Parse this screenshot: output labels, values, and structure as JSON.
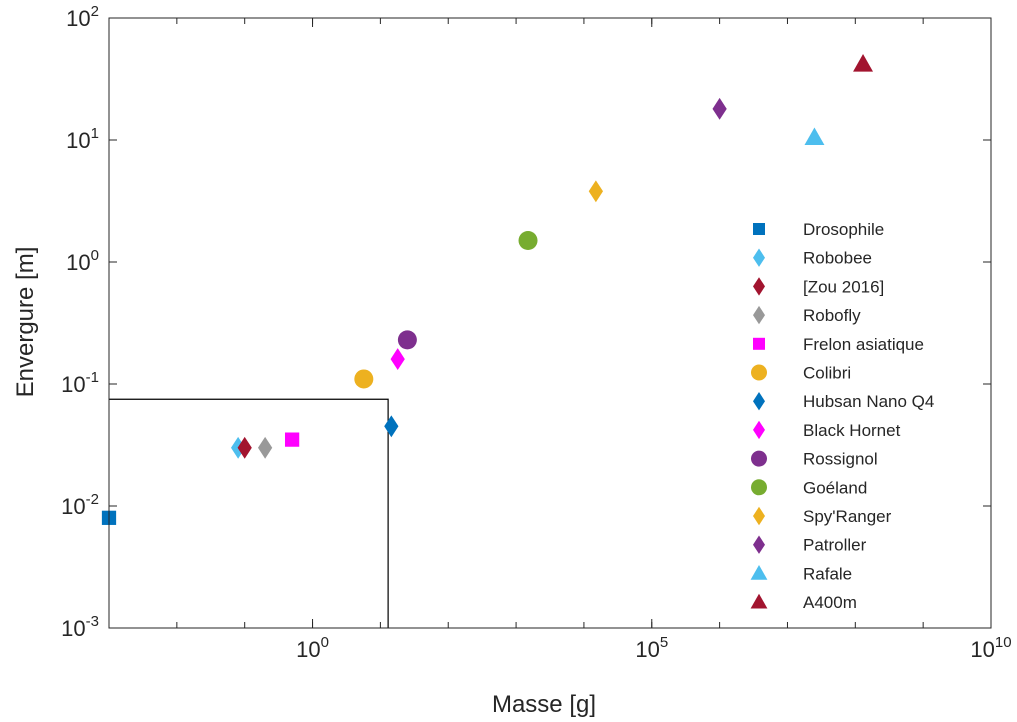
{
  "chart_data": {
    "type": "scatter",
    "xscale": "log",
    "yscale": "log",
    "xlim": [
      0.001,
      10000000000
    ],
    "ylim": [
      0.001,
      100
    ],
    "xlabel": "Masse [g]",
    "ylabel": "Envergure [m]",
    "x_ticks": [
      {
        "base": "10",
        "exp": "0",
        "value": 1
      },
      {
        "base": "10",
        "exp": "5",
        "value": 100000
      },
      {
        "base": "10",
        "exp": "10",
        "value": 10000000000
      }
    ],
    "y_ticks": [
      {
        "base": "10",
        "exp": "-3",
        "value": 0.001
      },
      {
        "base": "10",
        "exp": "-2",
        "value": 0.01
      },
      {
        "base": "10",
        "exp": "-1",
        "value": 0.1
      },
      {
        "base": "10",
        "exp": "0",
        "value": 1
      },
      {
        "base": "10",
        "exp": "1",
        "value": 10
      },
      {
        "base": "10",
        "exp": "2",
        "value": 100
      }
    ],
    "region_box": {
      "x": 13,
      "y": 0.075
    },
    "legend_position": "right",
    "series": [
      {
        "name": "Drosophile",
        "marker": "square",
        "color": "#0072BD",
        "x": 0.001,
        "y": 0.008
      },
      {
        "name": "Robobee",
        "marker": "diamond",
        "color": "#4DBEEE",
        "x": 0.08,
        "y": 0.03
      },
      {
        "name": "[Zou 2016]",
        "marker": "diamond",
        "color": "#A2142F",
        "x": 0.1,
        "y": 0.03
      },
      {
        "name": "Robofly",
        "marker": "diamond",
        "color": "#999999",
        "x": 0.2,
        "y": 0.03
      },
      {
        "name": "Frelon asiatique",
        "marker": "square",
        "color": "#FF00FF",
        "x": 0.5,
        "y": 0.035
      },
      {
        "name": "Colibri",
        "marker": "circle",
        "color": "#EDB120",
        "x": 5.7,
        "y": 0.11
      },
      {
        "name": "Hubsan Nano Q4",
        "marker": "diamond",
        "color": "#0072BD",
        "x": 14.5,
        "y": 0.045
      },
      {
        "name": "Black Hornet",
        "marker": "diamond",
        "color": "#FF00FF",
        "x": 18,
        "y": 0.16
      },
      {
        "name": "Rossignol",
        "marker": "circle",
        "color": "#7E2F8E",
        "x": 25,
        "y": 0.23
      },
      {
        "name": "Goéland",
        "marker": "circle",
        "color": "#77AC30",
        "x": 1500,
        "y": 1.5
      },
      {
        "name": "Spy'Ranger",
        "marker": "diamond",
        "color": "#EDB120",
        "x": 15000,
        "y": 3.8
      },
      {
        "name": "Patroller",
        "marker": "diamond",
        "color": "#7E2F8E",
        "x": 1000000,
        "y": 18
      },
      {
        "name": "Rafale",
        "marker": "triangle",
        "color": "#4DBEEE",
        "x": 25000000,
        "y": 10.5
      },
      {
        "name": "A400m",
        "marker": "triangle",
        "color": "#A2142F",
        "x": 130000000,
        "y": 42
      }
    ]
  }
}
